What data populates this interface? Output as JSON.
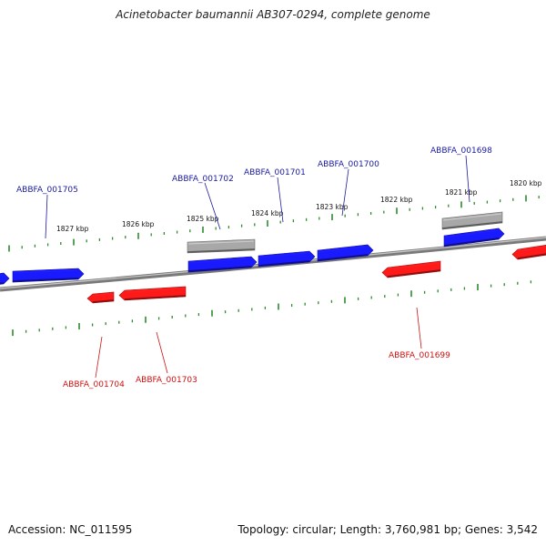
{
  "title": "Acinetobacter baumannii AB307-0294, complete genome",
  "footer": {
    "accession": "Accession: NC_011595",
    "summary": "Topology: circular; Length: 3,760,981 bp; Genes: 3,542"
  },
  "colors": {
    "forward_gene": "#1a1aff",
    "reverse_gene": "#ff1a1a",
    "pseudo_gene": "#a8a8a8",
    "backbone": "#808080",
    "tick": "#2e8b2e",
    "forward_label": "#1a1aa0",
    "reverse_label": "#cc1111"
  },
  "kbp_labels": [
    "1827 kbp",
    "1826 kbp",
    "1825 kbp",
    "1824 kbp",
    "1823 kbp",
    "1822 kbp",
    "1821 kbp",
    "1820 kbp"
  ],
  "gene_labels": {
    "forward": [
      "ABBFA_001705",
      "ABBFA_001702",
      "ABBFA_001701",
      "ABBFA_001700",
      "ABBFA_001698"
    ],
    "reverse": [
      "ABBFA_001704",
      "ABBFA_001703",
      "ABBFA_001699"
    ]
  }
}
